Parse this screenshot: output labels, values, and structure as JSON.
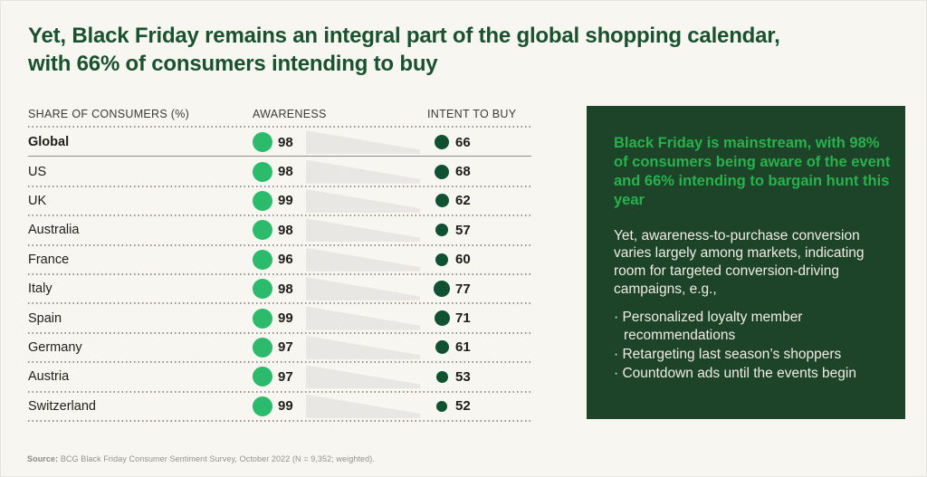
{
  "title": {
    "line1": "Yet, Black Friday remains an integral part of the global shopping calendar,",
    "line2": "with 66% of consumers intending to buy"
  },
  "table": {
    "headers": {
      "country": "SHARE OF CONSUMERS (%)",
      "awareness": "AWARENESS",
      "intent": "INTENT TO BUY"
    },
    "rows": [
      {
        "country": "Global",
        "awareness": 98,
        "intent": 66,
        "bold": true
      },
      {
        "country": "US",
        "awareness": 98,
        "intent": 68
      },
      {
        "country": "UK",
        "awareness": 99,
        "intent": 62
      },
      {
        "country": "Australia",
        "awareness": 98,
        "intent": 57
      },
      {
        "country": "France",
        "awareness": 96,
        "intent": 60
      },
      {
        "country": "Italy",
        "awareness": 98,
        "intent": 77
      },
      {
        "country": "Spain",
        "awareness": 99,
        "intent": 71
      },
      {
        "country": "Germany",
        "awareness": 97,
        "intent": 61
      },
      {
        "country": "Austria",
        "awareness": 97,
        "intent": 53
      },
      {
        "country": "Switzerland",
        "awareness": 99,
        "intent": 52
      }
    ]
  },
  "callout": {
    "highlight": "Black Friday is mainstream, with 98% of consumers being aware of the event and 66% intending to bargain hunt this year",
    "body": "Yet, awareness-to-purchase conversion varies largely among markets, indicating room for targeted conversion-driving campaigns, e.g.,",
    "bullet_marker": "·",
    "bullets": [
      "Personalized loyalty member recommendations",
      "Retargeting last season’s shoppers",
      "Countdown ads until the events begin"
    ]
  },
  "source": {
    "label": "Source:",
    "text": " BCG Black Friday Consumer Sentiment Survey, October 2022 (N = 9,352; weighted)."
  },
  "colors": {
    "page_background": "#F7F6F1",
    "title_green": "#1A5230",
    "awareness_dot": "#2CBB6C",
    "intent_dot": "#0F5130",
    "funnel_wedge": "#E8E7E3",
    "callout_background": "#1D4429",
    "callout_highlight_text": "#28B14D",
    "callout_body_text": "#EFEDE5"
  },
  "chart_data": {
    "type": "table",
    "title": "Yet, Black Friday remains an integral part of the global shopping calendar, with 66% of consumers intending to buy",
    "xlabel": "SHARE OF CONSUMERS (%)",
    "categories": [
      "Global",
      "US",
      "UK",
      "Australia",
      "France",
      "Italy",
      "Spain",
      "Germany",
      "Austria",
      "Switzerland"
    ],
    "series": [
      {
        "name": "Awareness",
        "values": [
          98,
          98,
          99,
          98,
          96,
          98,
          99,
          97,
          97,
          99
        ]
      },
      {
        "name": "Intent to buy",
        "values": [
          66,
          68,
          62,
          57,
          60,
          77,
          71,
          61,
          53,
          52
        ]
      }
    ],
    "value_range": [
      0,
      100
    ],
    "layout_hints": "dot size proportional to value; grey tapering wedge between columns depicts awareness-to-intent funnel per row"
  }
}
